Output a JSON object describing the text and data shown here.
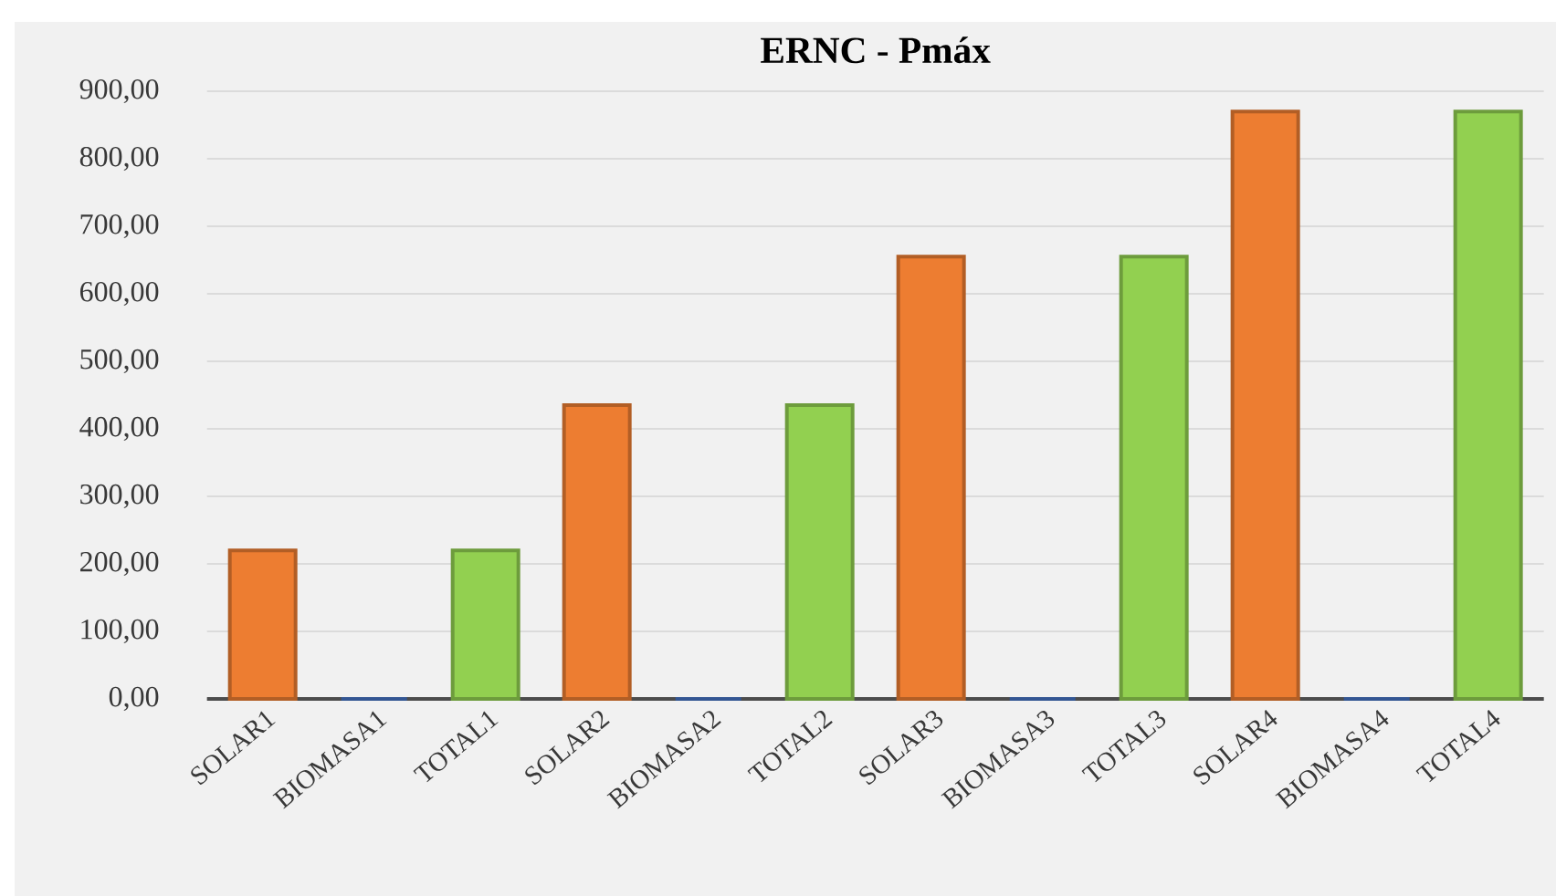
{
  "chart_data": {
    "type": "bar",
    "title": "ERNC - Pmáx",
    "categories": [
      "SOLAR1",
      "BIOMASA1",
      "TOTAL1",
      "SOLAR2",
      "BIOMASA2",
      "TOTAL2",
      "SOLAR3",
      "BIOMASA3",
      "TOTAL3",
      "SOLAR4",
      "BIOMASA4",
      "TOTAL4"
    ],
    "values": [
      220,
      0,
      220,
      435,
      0,
      435,
      655,
      0,
      655,
      870,
      0,
      870
    ],
    "colors": [
      "#ed7d31",
      "#4472c4",
      "#92d050",
      "#ed7d31",
      "#4472c4",
      "#92d050",
      "#ed7d31",
      "#4472c4",
      "#92d050",
      "#ed7d31",
      "#4472c4",
      "#92d050"
    ],
    "ylim": [
      0,
      900
    ],
    "yticks": [
      {
        "value": 0,
        "label": "0,00"
      },
      {
        "value": 100,
        "label": "100,00"
      },
      {
        "value": 200,
        "label": "200,00"
      },
      {
        "value": 300,
        "label": "300,00"
      },
      {
        "value": 400,
        "label": "400,00"
      },
      {
        "value": 500,
        "label": "500,00"
      },
      {
        "value": 600,
        "label": "600,00"
      },
      {
        "value": 700,
        "label": "700,00"
      },
      {
        "value": 800,
        "label": "800,00"
      },
      {
        "value": 900,
        "label": "900,00"
      }
    ],
    "grid": "y"
  }
}
